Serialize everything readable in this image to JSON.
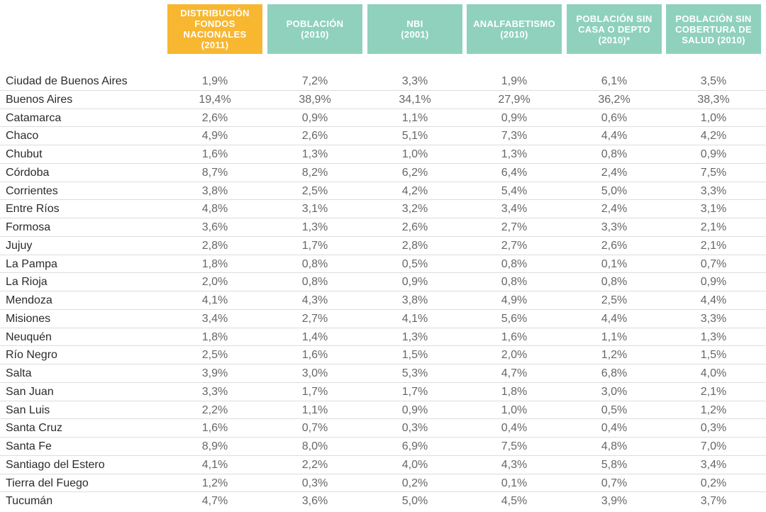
{
  "colors": {
    "highlight_header": "#f7b731",
    "header": "#8fd1bd",
    "province_text": "#2b2b2b",
    "value_text": "#666666",
    "row_divider": "#dddddd"
  },
  "columns": [
    {
      "label": "DISTRIBUCIÓN\nFONDOS\nNACIONALES\n(2011)",
      "highlight": true
    },
    {
      "label": "POBLACIÓN\n(2010)",
      "highlight": false
    },
    {
      "label": "NBI\n(2001)",
      "highlight": false
    },
    {
      "label": "ANALFABETISMO\n(2010)",
      "highlight": false
    },
    {
      "label": "POBLACIÓN SIN\nCASA O DEPTO\n(2010)*",
      "highlight": false
    },
    {
      "label": "POBLACIÓN SIN\nCOBERTURA DE\nSALUD (2010)",
      "highlight": false
    }
  ],
  "rows": [
    {
      "province": "Ciudad de Buenos Aires",
      "values": [
        "1,9%",
        "7,2%",
        "3,3%",
        "1,9%",
        "6,1%",
        "3,5%"
      ]
    },
    {
      "province": "Buenos Aires",
      "values": [
        "19,4%",
        "38,9%",
        "34,1%",
        "27,9%",
        "36,2%",
        "38,3%"
      ]
    },
    {
      "province": "Catamarca",
      "values": [
        "2,6%",
        "0,9%",
        "1,1%",
        "0,9%",
        "0,6%",
        "1,0%"
      ]
    },
    {
      "province": "Chaco",
      "values": [
        "4,9%",
        "2,6%",
        "5,1%",
        "7,3%",
        "4,4%",
        "4,2%"
      ]
    },
    {
      "province": "Chubut",
      "values": [
        "1,6%",
        "1,3%",
        "1,0%",
        "1,3%",
        "0,8%",
        "0,9%"
      ]
    },
    {
      "province": "Córdoba",
      "values": [
        "8,7%",
        "8,2%",
        "6,2%",
        "6,4%",
        "2,4%",
        "7,5%"
      ]
    },
    {
      "province": "Corrientes",
      "values": [
        "3,8%",
        "2,5%",
        "4,2%",
        "5,4%",
        "5,0%",
        "3,3%"
      ]
    },
    {
      "province": "Entre Ríos",
      "values": [
        "4,8%",
        "3,1%",
        "3,2%",
        "3,4%",
        "2,4%",
        "3,1%"
      ]
    },
    {
      "province": "Formosa",
      "values": [
        "3,6%",
        "1,3%",
        "2,6%",
        "2,7%",
        "3,3%",
        "2,1%"
      ]
    },
    {
      "province": "Jujuy",
      "values": [
        "2,8%",
        "1,7%",
        "2,8%",
        "2,7%",
        "2,6%",
        "2,1%"
      ]
    },
    {
      "province": "La Pampa",
      "values": [
        "1,8%",
        "0,8%",
        "0,5%",
        "0,8%",
        "0,1%",
        "0,7%"
      ]
    },
    {
      "province": "La Rioja",
      "values": [
        "2,0%",
        "0,8%",
        "0,9%",
        "0,8%",
        "0,8%",
        "0,9%"
      ]
    },
    {
      "province": "Mendoza",
      "values": [
        "4,1%",
        "4,3%",
        "3,8%",
        "4,9%",
        "2,5%",
        "4,4%"
      ]
    },
    {
      "province": "Misiones",
      "values": [
        "3,4%",
        "2,7%",
        "4,1%",
        "5,6%",
        "4,4%",
        "3,3%"
      ]
    },
    {
      "province": "Neuquén",
      "values": [
        "1,8%",
        "1,4%",
        "1,3%",
        "1,6%",
        "1,1%",
        "1,3%"
      ]
    },
    {
      "province": "Río Negro",
      "values": [
        "2,5%",
        "1,6%",
        "1,5%",
        "2,0%",
        "1,2%",
        "1,5%"
      ]
    },
    {
      "province": "Salta",
      "values": [
        "3,9%",
        "3,0%",
        "5,3%",
        "4,7%",
        "6,8%",
        "4,0%"
      ]
    },
    {
      "province": "San Juan",
      "values": [
        "3,3%",
        "1,7%",
        "1,7%",
        "1,8%",
        "3,0%",
        "2,1%"
      ]
    },
    {
      "province": "San Luis",
      "values": [
        "2,2%",
        "1,1%",
        "0,9%",
        "1,0%",
        "0,5%",
        "1,2%"
      ]
    },
    {
      "province": "Santa Cruz",
      "values": [
        "1,6%",
        "0,7%",
        "0,3%",
        "0,4%",
        "0,4%",
        "0,3%"
      ]
    },
    {
      "province": "Santa Fe",
      "values": [
        "8,9%",
        "8,0%",
        "6,9%",
        "7,5%",
        "4,8%",
        "7,0%"
      ]
    },
    {
      "province": "Santiago del Estero",
      "values": [
        "4,1%",
        "2,2%",
        "4,0%",
        "4,3%",
        "5,8%",
        "3,4%"
      ]
    },
    {
      "province": "Tierra del Fuego",
      "values": [
        "1,2%",
        "0,3%",
        "0,2%",
        "0,1%",
        "0,7%",
        "0,2%"
      ]
    },
    {
      "province": "Tucumán",
      "values": [
        "4,7%",
        "3,6%",
        "5,0%",
        "4,5%",
        "3,9%",
        "3,7%"
      ]
    }
  ]
}
